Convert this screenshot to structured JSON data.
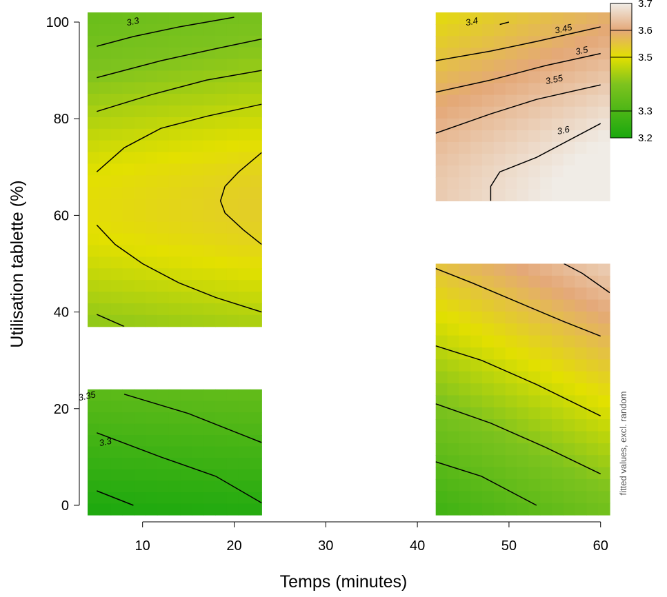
{
  "chart_data": {
    "type": "heatmap",
    "xlabel": "Temps (minutes)",
    "ylabel": "Utilisation tablette (%)",
    "side_label": "fitted values, excl. random",
    "xlim": [
      4,
      61
    ],
    "ylim": [
      -2,
      102
    ],
    "x_ticks": [
      10,
      20,
      30,
      40,
      50,
      60
    ],
    "y_ticks": [
      0,
      20,
      40,
      60,
      80,
      100
    ],
    "legend": {
      "placement": "right",
      "ticks": [
        "3.2",
        "3.3",
        "3.5",
        "3.6",
        "3.7"
      ],
      "ticks_numeric": [
        3.2,
        3.3,
        3.5,
        3.6,
        3.7
      ],
      "range": [
        3.2,
        3.7
      ]
    },
    "colors": {
      "low": "#1aa80e",
      "mid": "#e3e000",
      "high": "#f0ece6"
    },
    "regions": [
      {
        "name": "top-left",
        "x": [
          4,
          23
        ],
        "y": [
          37,
          102
        ]
      },
      {
        "name": "bottom-left",
        "x": [
          4,
          23
        ],
        "y": [
          -2,
          24
        ]
      },
      {
        "name": "top-right",
        "x": [
          42,
          61
        ],
        "y": [
          63,
          102
        ]
      },
      {
        "name": "bottom-right",
        "x": [
          42,
          61
        ],
        "y": [
          -2,
          50
        ]
      }
    ],
    "contour_labels": [
      {
        "text": "3.3",
        "x": 9,
        "y": 99.5
      },
      {
        "text": "3.4",
        "x": 46,
        "y": 99.5
      },
      {
        "text": "3.45",
        "x": 56,
        "y": 98
      },
      {
        "text": "3.5",
        "x": 58,
        "y": 93.5
      },
      {
        "text": "3.55",
        "x": 55,
        "y": 87.5
      },
      {
        "text": "3.6",
        "x": 56,
        "y": 77
      },
      {
        "text": "3.35",
        "x": 4,
        "y": 22
      },
      {
        "text": "3.3",
        "x": 6,
        "y": 12.5
      }
    ],
    "contour_lines": [
      {
        "region": "top-left",
        "pts": [
          [
            5,
            95
          ],
          [
            9,
            97
          ],
          [
            14,
            99
          ],
          [
            20,
            101
          ]
        ]
      },
      {
        "region": "top-left",
        "pts": [
          [
            5,
            88.5
          ],
          [
            12,
            92
          ],
          [
            18,
            94.5
          ],
          [
            23,
            96.5
          ]
        ]
      },
      {
        "region": "top-left",
        "pts": [
          [
            5,
            81.5
          ],
          [
            11,
            85
          ],
          [
            17,
            88
          ],
          [
            23,
            90
          ]
        ]
      },
      {
        "region": "top-left",
        "pts": [
          [
            5,
            69
          ],
          [
            8,
            74
          ],
          [
            12,
            78
          ],
          [
            17,
            80.5
          ],
          [
            23,
            83
          ]
        ]
      },
      {
        "region": "top-left",
        "pts": [
          [
            18.5,
            63
          ],
          [
            19,
            66
          ],
          [
            20.5,
            69
          ],
          [
            23,
            73
          ]
        ]
      },
      {
        "region": "top-left",
        "pts": [
          [
            18.5,
            63
          ],
          [
            19,
            60.5
          ],
          [
            21,
            57
          ],
          [
            23,
            54
          ]
        ]
      },
      {
        "region": "top-left",
        "pts": [
          [
            5,
            58
          ],
          [
            7,
            54
          ],
          [
            10,
            50
          ],
          [
            14,
            46
          ],
          [
            18,
            43
          ],
          [
            23,
            40
          ]
        ]
      },
      {
        "region": "top-left",
        "pts": [
          [
            5,
            39.5
          ],
          [
            8,
            37
          ]
        ]
      },
      {
        "region": "bottom-left",
        "pts": [
          [
            8,
            23
          ],
          [
            15,
            19
          ],
          [
            23,
            13
          ]
        ]
      },
      {
        "region": "bottom-left",
        "pts": [
          [
            5,
            15
          ],
          [
            12,
            10
          ],
          [
            18,
            6
          ],
          [
            23,
            0.5
          ]
        ]
      },
      {
        "region": "bottom-left",
        "pts": [
          [
            5,
            3
          ],
          [
            9,
            0
          ]
        ]
      },
      {
        "region": "top-right",
        "pts": [
          [
            49,
            99.5
          ],
          [
            50,
            100
          ]
        ]
      },
      {
        "region": "top-right",
        "pts": [
          [
            42,
            92
          ],
          [
            48,
            94
          ],
          [
            53,
            96
          ],
          [
            60,
            99
          ]
        ]
      },
      {
        "region": "top-right",
        "pts": [
          [
            42,
            85.5
          ],
          [
            48,
            88
          ],
          [
            54,
            91
          ],
          [
            60,
            93.5
          ]
        ]
      },
      {
        "region": "top-right",
        "pts": [
          [
            42,
            77
          ],
          [
            48,
            81
          ],
          [
            53,
            84
          ],
          [
            60,
            87
          ]
        ]
      },
      {
        "region": "top-right",
        "pts": [
          [
            48,
            63
          ],
          [
            48,
            66
          ],
          [
            49,
            69
          ],
          [
            53,
            72
          ],
          [
            60,
            79
          ]
        ]
      },
      {
        "region": "bottom-right",
        "pts": [
          [
            42,
            49
          ],
          [
            46,
            46
          ],
          [
            51,
            42
          ],
          [
            56,
            38
          ],
          [
            60,
            35
          ]
        ]
      },
      {
        "region": "bottom-right",
        "pts": [
          [
            42,
            33
          ],
          [
            47,
            30
          ],
          [
            53,
            25
          ],
          [
            60,
            18.5
          ]
        ]
      },
      {
        "region": "bottom-right",
        "pts": [
          [
            42,
            21
          ],
          [
            48,
            17
          ],
          [
            54,
            12
          ],
          [
            60,
            6.5
          ]
        ]
      },
      {
        "region": "bottom-right",
        "pts": [
          [
            42,
            9
          ],
          [
            47,
            6
          ],
          [
            53,
            0
          ]
        ]
      },
      {
        "region": "bottom-right",
        "pts": [
          [
            56,
            50
          ],
          [
            58,
            48
          ],
          [
            61,
            44
          ]
        ]
      }
    ]
  }
}
